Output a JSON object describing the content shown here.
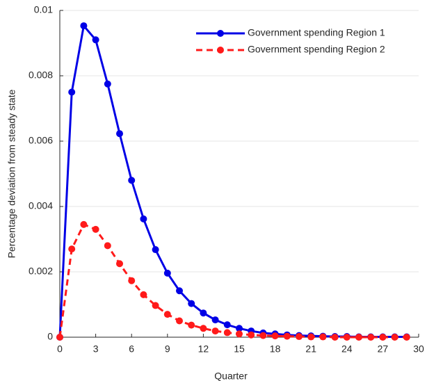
{
  "chart_data": {
    "type": "line",
    "x": [
      0,
      1,
      2,
      3,
      4,
      5,
      6,
      7,
      8,
      9,
      10,
      11,
      12,
      13,
      14,
      15,
      16,
      17,
      18,
      19,
      20,
      21,
      22,
      23,
      24,
      25,
      26,
      27,
      28,
      29
    ],
    "series": [
      {
        "name": "Government spending Region 1",
        "color": "#0000e6",
        "dash": false,
        "values": [
          0,
          0.0075,
          0.00953,
          0.0091,
          0.00775,
          0.00623,
          0.0048,
          0.00362,
          0.00268,
          0.00196,
          0.00142,
          0.00103,
          0.00074,
          0.00053,
          0.00038,
          0.00027,
          0.00019,
          0.00013,
          0.0001,
          7e-05,
          5e-05,
          4e-05,
          3e-05,
          2e-05,
          2e-05,
          1e-05,
          1e-05,
          1e-05,
          1e-05,
          1e-05
        ]
      },
      {
        "name": "Government spending Region 2",
        "color": "#ff1a1a",
        "dash": true,
        "values": [
          0,
          0.0027,
          0.00345,
          0.0033,
          0.0028,
          0.00225,
          0.00173,
          0.0013,
          0.00097,
          0.0007,
          0.0005,
          0.00037,
          0.00027,
          0.00019,
          0.00014,
          0.0001,
          7e-05,
          5e-05,
          4e-05,
          3e-05,
          2e-05,
          1e-05,
          1e-05,
          0,
          0,
          0,
          0,
          0,
          0,
          0
        ]
      }
    ],
    "xlabel": "Quarter",
    "ylabel": "Percentage deviation from steady state",
    "xlim": [
      0,
      30
    ],
    "xticks": [
      0,
      3,
      6,
      9,
      12,
      15,
      18,
      21,
      24,
      27,
      30
    ],
    "ylim": [
      0,
      0.01
    ],
    "yticks": [
      0,
      0.002,
      0.004,
      0.006,
      0.008,
      0.01
    ],
    "grid": true,
    "legend": "upper right"
  }
}
